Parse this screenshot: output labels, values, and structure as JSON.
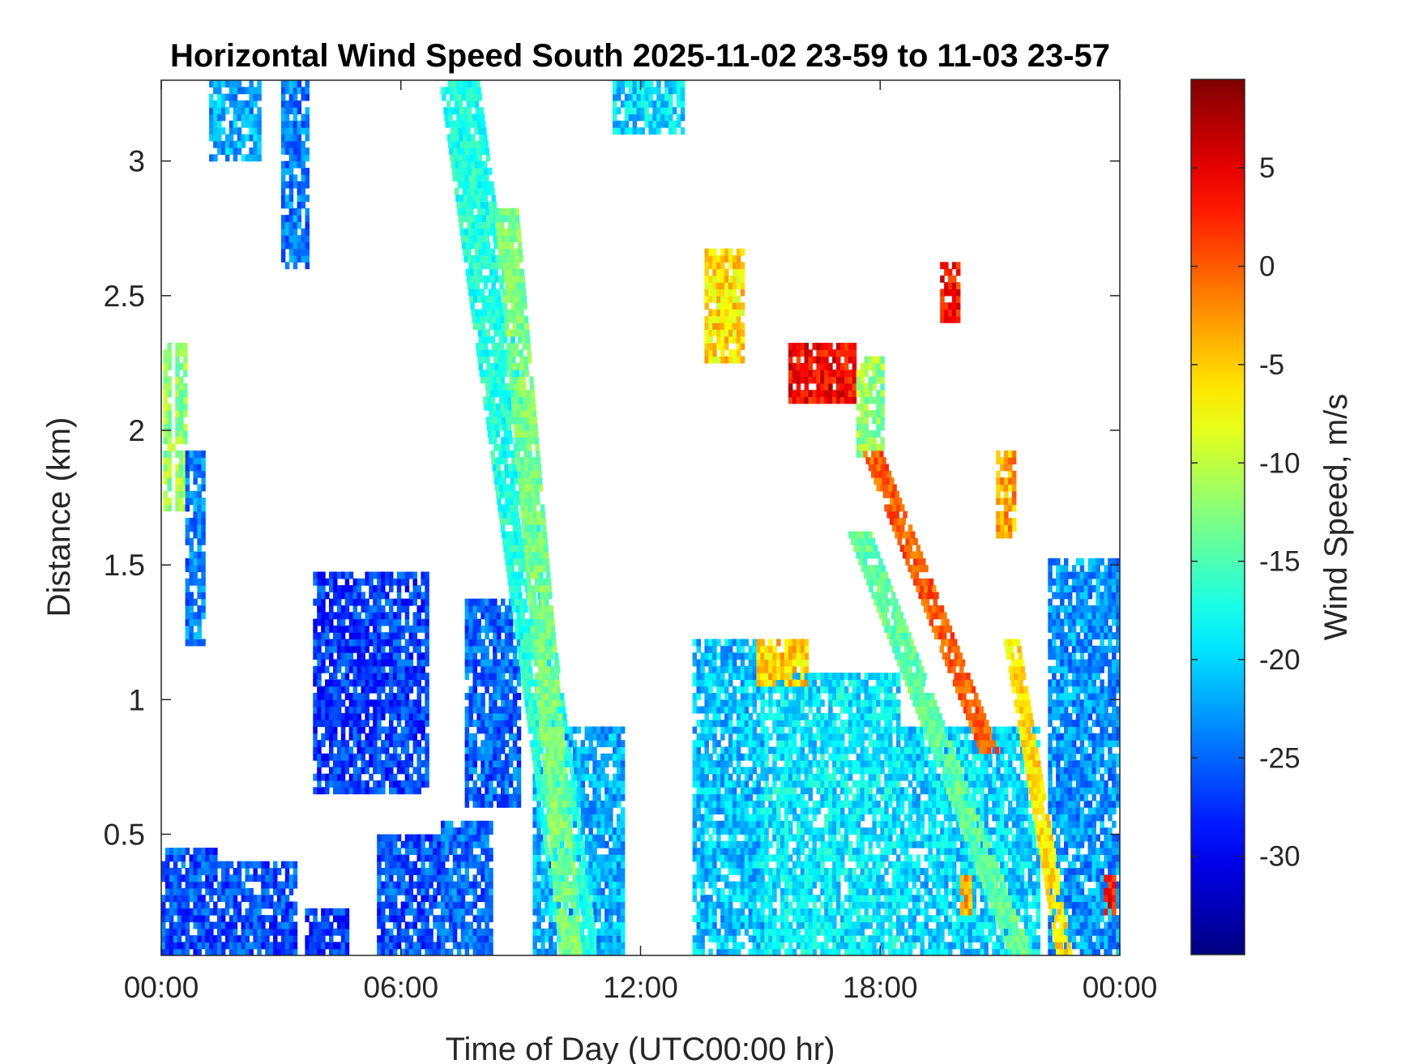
{
  "chart_data": {
    "type": "heatmap",
    "title": "Horizontal Wind Speed South 2025-11-02 23-59 to 11-03 23-57",
    "xlabel": "Time of Day (UTC00:00 hr)",
    "ylabel": "Distance (km)",
    "colorbar_label": "Wind Speed, m/s",
    "colormap": "jet",
    "x_unit": "hours",
    "xlim": [
      0,
      24
    ],
    "ylim": [
      0.05,
      3.3
    ],
    "clim": [
      -35,
      9.5
    ],
    "x_ticks": [
      {
        "value": 0,
        "label": "00:00"
      },
      {
        "value": 6,
        "label": "06:00"
      },
      {
        "value": 12,
        "label": "12:00"
      },
      {
        "value": 18,
        "label": "18:00"
      },
      {
        "value": 24,
        "label": "00:00"
      }
    ],
    "y_ticks": [
      {
        "value": 0.5,
        "label": "0.5"
      },
      {
        "value": 1,
        "label": "1"
      },
      {
        "value": 1.5,
        "label": "1.5"
      },
      {
        "value": 2,
        "label": "2"
      },
      {
        "value": 2.5,
        "label": "2.5"
      },
      {
        "value": 3,
        "label": "3"
      }
    ],
    "colorbar_ticks": [
      {
        "value": 5,
        "label": "5"
      },
      {
        "value": 0,
        "label": "0"
      },
      {
        "value": -5,
        "label": "-5"
      },
      {
        "value": -10,
        "label": "-10"
      },
      {
        "value": -15,
        "label": "-15"
      },
      {
        "value": -20,
        "label": "-20"
      },
      {
        "value": -25,
        "label": "-25"
      },
      {
        "value": -30,
        "label": "-30"
      }
    ],
    "regions": [
      {
        "t": [
          0.0,
          1.4
        ],
        "h": [
          0.05,
          0.45
        ],
        "v": -26
      },
      {
        "t": [
          1.4,
          3.4
        ],
        "h": [
          0.05,
          0.4
        ],
        "v": -26
      },
      {
        "t": [
          3.6,
          4.6
        ],
        "h": [
          0.05,
          0.22
        ],
        "v": -27
      },
      {
        "t": [
          3.8,
          6.6
        ],
        "h": [
          0.65,
          1.45
        ],
        "v": -27
      },
      {
        "t": [
          5.4,
          7.0
        ],
        "h": [
          0.05,
          0.5
        ],
        "v": -26
      },
      {
        "t": [
          7.0,
          8.2
        ],
        "h": [
          0.05,
          0.55
        ],
        "v": -25
      },
      {
        "t": [
          7.6,
          8.9
        ],
        "h": [
          0.6,
          1.35
        ],
        "v": -25
      },
      {
        "t": [
          1.2,
          2.5
        ],
        "h": [
          3.0,
          3.3
        ],
        "v": -22
      },
      {
        "t": [
          3.0,
          3.7
        ],
        "h": [
          2.6,
          3.3
        ],
        "v": -24
      },
      {
        "t": [
          0.05,
          0.6
        ],
        "h": [
          1.7,
          2.3
        ],
        "v": -12
      },
      {
        "t": [
          0.6,
          1.0
        ],
        "h": [
          1.2,
          1.9
        ],
        "v": -24
      },
      {
        "t": [
          11.3,
          13.0
        ],
        "h": [
          3.1,
          3.3
        ],
        "v": -20
      },
      {
        "t": [
          9.3,
          11.5
        ],
        "h": [
          0.05,
          0.9
        ],
        "v": -22
      },
      {
        "t": [
          13.3,
          15.0
        ],
        "h": [
          0.05,
          1.2
        ],
        "v": -21
      },
      {
        "t": [
          15.0,
          18.5
        ],
        "h": [
          0.05,
          1.1
        ],
        "v": -19
      },
      {
        "t": [
          18.5,
          22.0
        ],
        "h": [
          0.05,
          0.9
        ],
        "v": -20
      },
      {
        "t": [
          13.6,
          14.5
        ],
        "h": [
          2.25,
          2.65
        ],
        "v": -6
      },
      {
        "t": [
          15.7,
          17.4
        ],
        "h": [
          2.1,
          2.3
        ],
        "v": 4
      },
      {
        "t": [
          17.4,
          18.1
        ],
        "h": [
          1.9,
          2.25
        ],
        "v": -12
      },
      {
        "t": [
          19.5,
          20.0
        ],
        "h": [
          2.4,
          2.6
        ],
        "v": 3
      },
      {
        "t": [
          20.9,
          21.4
        ],
        "h": [
          1.6,
          1.9
        ],
        "v": -3
      },
      {
        "t": [
          14.9,
          16.2
        ],
        "h": [
          1.05,
          1.2
        ],
        "v": -5
      },
      {
        "t": [
          22.2,
          24.0
        ],
        "h": [
          0.05,
          1.5
        ],
        "v": -23
      },
      {
        "t": [
          23.6,
          23.9
        ],
        "h": [
          0.2,
          0.35
        ],
        "v": 3
      },
      {
        "t": [
          20.0,
          20.3
        ],
        "h": [
          0.2,
          0.35
        ],
        "v": -3
      }
    ],
    "bands": [
      {
        "t0": 7.4,
        "t1": 10.4,
        "h0": 3.3,
        "h1": 0.05,
        "width": 0.9,
        "v": -17
      },
      {
        "t0": 8.6,
        "t1": 10.2,
        "h0": 2.8,
        "h1": 0.05,
        "width": 0.5,
        "v": -13
      },
      {
        "t0": 17.8,
        "t1": 20.7,
        "h0": 1.9,
        "h1": 0.8,
        "width": 0.45,
        "v": 0
      },
      {
        "t0": 17.5,
        "t1": 21.5,
        "h0": 1.6,
        "h1": 0.05,
        "width": 0.6,
        "v": -14
      },
      {
        "t0": 21.3,
        "t1": 22.6,
        "h0": 1.2,
        "h1": 0.05,
        "width": 0.4,
        "v": -6
      }
    ]
  }
}
